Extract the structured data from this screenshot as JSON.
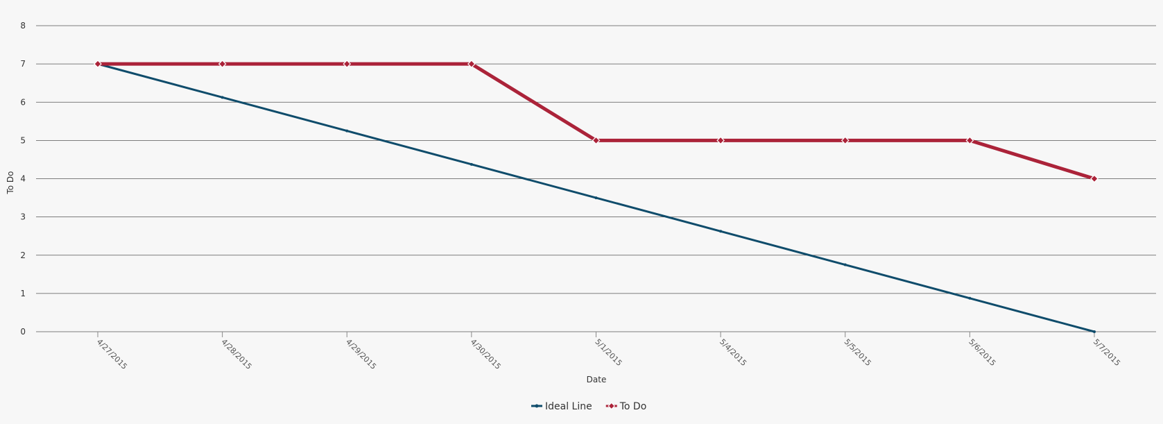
{
  "chart_data": {
    "type": "line",
    "title": "",
    "xlabel": "Date",
    "ylabel": "To Do",
    "ylim": [
      0,
      8
    ],
    "yticks": [
      0,
      1,
      2,
      3,
      4,
      5,
      6,
      7,
      8
    ],
    "grid": true,
    "legend_position": "bottom-center",
    "categories": [
      "4/27/2015",
      "4/28/2015",
      "4/29/2015",
      "4/30/2015",
      "5/1/2015",
      "5/4/2015",
      "5/5/2015",
      "5/6/2015",
      "5/7/2015"
    ],
    "series": [
      {
        "name": "Ideal Line",
        "color": "#0f4c6b",
        "marker": "circle",
        "values": [
          7,
          6.125,
          5.25,
          4.375,
          3.5,
          2.625,
          1.75,
          0.875,
          0
        ]
      },
      {
        "name": "To Do",
        "color": "#ab2339",
        "marker": "diamond",
        "values": [
          7,
          7,
          7,
          7,
          5,
          5,
          5,
          5,
          4
        ]
      }
    ]
  }
}
